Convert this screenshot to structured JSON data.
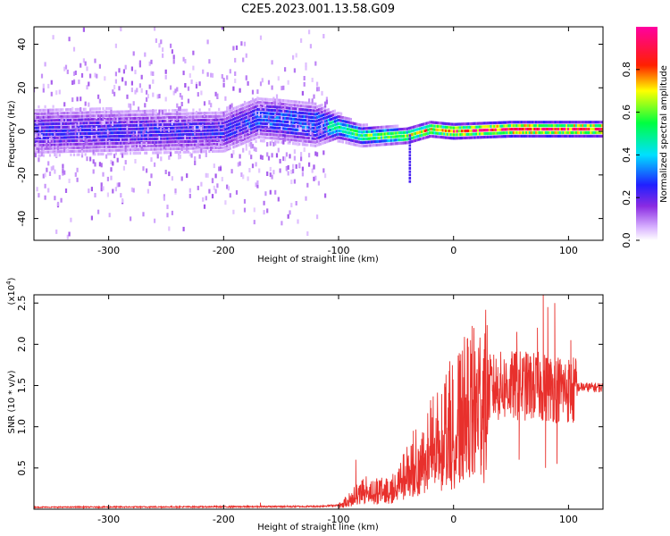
{
  "figure": {
    "title": "C2E5.2023.001.13.58.G09"
  },
  "chart_data": [
    {
      "type": "heatmap",
      "xlabel": "Height of straight line (km)",
      "ylabel": "Frequency (Hz)",
      "xlim": [
        -365,
        130
      ],
      "ylim": [
        -50,
        48
      ],
      "xticks": [
        -300,
        -200,
        -100,
        0,
        100
      ],
      "yticks": [
        -40,
        -20,
        0,
        20,
        40
      ],
      "colorbar": {
        "label": "Normalized spectral amplitude",
        "range": [
          0.0,
          1.0
        ],
        "ticks": [
          0.0,
          0.2,
          0.4,
          0.6,
          0.8
        ],
        "colormap": "hsv-like (white, purple, blue, cyan, green, yellow, red, magenta)"
      },
      "band": {
        "center_frequency_hz": [
          [
            -365,
            0
          ],
          [
            -300,
            0
          ],
          [
            -200,
            0
          ],
          [
            -170,
            6
          ],
          [
            -150,
            5
          ],
          [
            -120,
            3
          ],
          [
            -100,
            2
          ],
          [
            -80,
            -2
          ],
          [
            -60,
            -2
          ],
          [
            -40,
            -2
          ],
          [
            -20,
            1
          ],
          [
            0,
            0
          ],
          [
            50,
            1
          ],
          [
            100,
            1
          ],
          [
            130,
            1
          ]
        ],
        "core_halfwidth_hz": [
          [
            -365,
            10
          ],
          [
            -120,
            8
          ],
          [
            -100,
            5
          ],
          [
            -80,
            4
          ],
          [
            -40,
            3
          ],
          [
            0,
            3
          ],
          [
            130,
            3
          ]
        ],
        "peak_amplitude": [
          [
            -365,
            0.25
          ],
          [
            -200,
            0.25
          ],
          [
            -110,
            0.45
          ],
          [
            -90,
            0.55
          ],
          [
            -60,
            0.6
          ],
          [
            -40,
            0.7
          ],
          [
            -20,
            0.75
          ],
          [
            0,
            0.85
          ],
          [
            50,
            0.95
          ],
          [
            100,
            0.95
          ],
          [
            130,
            0.9
          ]
        ],
        "noise_halo_end_km": -110
      }
    },
    {
      "type": "line",
      "xlabel": "Height of straight line (km)",
      "ylabel": "SNR (10 * v/v)",
      "y_multiplier": "(x10",
      "y_multiplier_exp": "4",
      "y_multiplier_close": ")",
      "xlim": [
        -365,
        130
      ],
      "ylim": [
        0,
        26000
      ],
      "xticks": [
        -300,
        -200,
        -100,
        0,
        100
      ],
      "yticks": [
        5000,
        10000,
        15000,
        20000,
        25000
      ],
      "ytick_labels": [
        "0.5",
        "1.0",
        "1.5",
        "2.0",
        "2.5"
      ],
      "series": [
        {
          "color": "#e8302c",
          "envelope": [
            [
              -365,
              250
            ],
            [
              -200,
              300
            ],
            [
              -120,
              350
            ],
            [
              -100,
              500
            ],
            [
              -90,
              1300
            ],
            [
              -80,
              2500
            ],
            [
              -70,
              2400
            ],
            [
              -60,
              2300
            ],
            [
              -50,
              3000
            ],
            [
              -40,
              4800
            ],
            [
              -30,
              6500
            ],
            [
              -20,
              8300
            ],
            [
              -10,
              10000
            ],
            [
              0,
              11500
            ],
            [
              10,
              12800
            ],
            [
              20,
              14000
            ],
            [
              30,
              15000
            ],
            [
              40,
              15300
            ],
            [
              60,
              15400
            ],
            [
              80,
              15200
            ],
            [
              100,
              14900
            ],
            [
              130,
              14800
            ]
          ],
          "spikes": [
            {
              "x": 55,
              "y": 21500
            },
            {
              "x": 57,
              "y": 6000
            },
            {
              "x": 73,
              "y": 22000
            },
            {
              "x": 78,
              "y": 26000
            },
            {
              "x": 80,
              "y": 5000
            },
            {
              "x": 82,
              "y": 24500
            },
            {
              "x": 88,
              "y": 25000
            },
            {
              "x": 90,
              "y": 5500
            },
            {
              "x": 102,
              "y": 20500
            },
            {
              "x": 104,
              "y": 10500
            },
            {
              "x": -168,
              "y": 800
            },
            {
              "x": -85,
              "y": 6000
            },
            {
              "x": -35,
              "y": 9500
            },
            {
              "x": -20,
              "y": 11000
            }
          ]
        }
      ]
    }
  ]
}
